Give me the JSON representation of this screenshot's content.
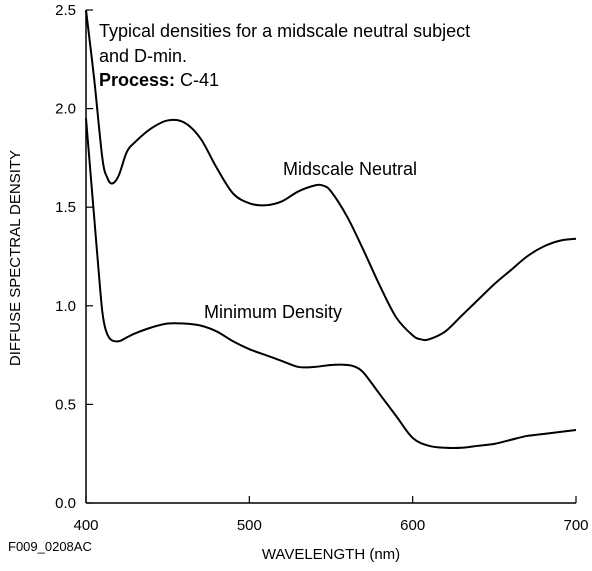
{
  "chart_data": {
    "type": "line",
    "title": "",
    "annotation": {
      "line1": "Typical densities for a midscale neutral subject",
      "line2": "and D-min.",
      "process_label": "Process:",
      "process_value": " C-41"
    },
    "xlabel": "WAVELENGTH (nm)",
    "ylabel": "DIFFUSE SPECTRAL DENSITY",
    "xlim": [
      400,
      700
    ],
    "ylim": [
      0.0,
      2.5
    ],
    "x_ticks": [
      400,
      500,
      600,
      700
    ],
    "x_tick_labels": [
      "400",
      "500",
      "600",
      "700"
    ],
    "y_ticks": [
      0.0,
      0.5,
      1.0,
      1.5,
      2.0,
      2.5
    ],
    "y_tick_labels": [
      "0.0",
      "0.5",
      "1.0",
      "1.5",
      "2.0",
      "2.5"
    ],
    "grid": false,
    "figure_id": "F009_0208AC",
    "series": [
      {
        "name": "Midscale Neutral",
        "x": [
          400,
          405,
          410,
          413,
          416,
          420,
          425,
          430,
          440,
          450,
          460,
          470,
          480,
          490,
          500,
          510,
          520,
          530,
          540,
          545,
          550,
          560,
          570,
          580,
          590,
          600,
          605,
          610,
          620,
          630,
          640,
          650,
          660,
          670,
          680,
          690,
          700
        ],
        "y": [
          2.5,
          2.15,
          1.75,
          1.65,
          1.62,
          1.66,
          1.78,
          1.83,
          1.9,
          1.94,
          1.93,
          1.85,
          1.7,
          1.57,
          1.52,
          1.51,
          1.53,
          1.58,
          1.61,
          1.61,
          1.58,
          1.45,
          1.28,
          1.1,
          0.94,
          0.85,
          0.83,
          0.83,
          0.87,
          0.95,
          1.03,
          1.11,
          1.18,
          1.25,
          1.3,
          1.33,
          1.34
        ]
      },
      {
        "name": "Minimum Density",
        "x": [
          400,
          402,
          405,
          408,
          410,
          412,
          415,
          420,
          425,
          430,
          440,
          450,
          460,
          470,
          480,
          490,
          500,
          510,
          520,
          530,
          540,
          550,
          560,
          565,
          570,
          580,
          590,
          600,
          610,
          620,
          630,
          640,
          650,
          660,
          670,
          680,
          690,
          700
        ],
        "y": [
          1.95,
          1.75,
          1.45,
          1.15,
          0.97,
          0.88,
          0.83,
          0.82,
          0.84,
          0.86,
          0.89,
          0.91,
          0.91,
          0.9,
          0.87,
          0.82,
          0.78,
          0.75,
          0.72,
          0.69,
          0.69,
          0.7,
          0.7,
          0.69,
          0.66,
          0.55,
          0.44,
          0.33,
          0.29,
          0.28,
          0.28,
          0.29,
          0.3,
          0.32,
          0.34,
          0.35,
          0.36,
          0.37
        ]
      }
    ]
  }
}
